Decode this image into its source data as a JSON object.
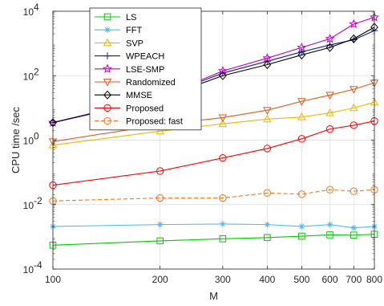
{
  "chart_data": {
    "type": "line",
    "title": "",
    "xlabel": "M",
    "ylabel": "CPU time /sec",
    "x_scale": "log",
    "y_scale": "log",
    "xlim": [
      100,
      800
    ],
    "ylim": [
      0.0001,
      10000
    ],
    "grid": true,
    "legend_position": "top-left",
    "x_ticks": [
      100,
      200,
      300,
      400,
      500,
      600,
      700,
      800
    ],
    "x_tick_labels": [
      "100",
      "200",
      "300",
      "400",
      "500",
      "600",
      "700",
      "800"
    ],
    "y_ticks": [
      0.0001,
      0.01,
      1,
      100,
      10000
    ],
    "y_tick_labels": [
      {
        "base": "10",
        "exp": "-4"
      },
      {
        "base": "10",
        "exp": "-2"
      },
      {
        "base": "10",
        "exp": "0"
      },
      {
        "base": "10",
        "exp": "2"
      },
      {
        "base": "10",
        "exp": "4"
      }
    ],
    "x": [
      100,
      200,
      300,
      400,
      500,
      600,
      700,
      800
    ],
    "series": [
      {
        "name": "LS",
        "color": "#00cc00",
        "marker": "square",
        "dashed": false,
        "values": [
          0.00055,
          0.00075,
          0.00087,
          0.00095,
          0.00105,
          0.00115,
          0.00113,
          0.0012
        ]
      },
      {
        "name": "FFT",
        "color": "#4db8f0",
        "marker": "asterisk",
        "dashed": false,
        "values": [
          0.0021,
          0.0024,
          0.0025,
          0.0024,
          0.0021,
          0.0024,
          0.0019,
          0.0021
        ]
      },
      {
        "name": "SVP",
        "color": "#f0b400",
        "marker": "triangle-up",
        "dashed": false,
        "values": [
          0.7,
          1.9,
          3.2,
          4.5,
          5.2,
          7.0,
          10.0,
          15.0
        ]
      },
      {
        "name": "WPEACH",
        "color": "#1a1a8c",
        "marker": "plus",
        "dashed": false,
        "values": [
          3.5,
          22,
          120,
          280,
          550,
          900,
          1300,
          2500
        ]
      },
      {
        "name": "LSE-SMP",
        "color": "#c000c0",
        "marker": "star",
        "dashed": false,
        "values": [
          3.5,
          22,
          140,
          350,
          750,
          1400,
          4000,
          6500
        ]
      },
      {
        "name": "Randomized",
        "color": "#e05a1a",
        "marker": "triangle-down",
        "dashed": false,
        "values": [
          0.9,
          3.0,
          5.0,
          8.5,
          16,
          25,
          38,
          60
        ]
      },
      {
        "name": "MMSE",
        "color": "#000000",
        "marker": "diamond",
        "dashed": false,
        "values": [
          3.5,
          20,
          100,
          220,
          440,
          750,
          1400,
          3200
        ]
      },
      {
        "name": "Proposed",
        "color": "#ff0000",
        "marker": "circle",
        "dashed": false,
        "values": [
          0.04,
          0.11,
          0.28,
          0.55,
          1.1,
          2.2,
          2.9,
          3.9
        ]
      },
      {
        "name": "Proposed: fast",
        "color": "#f07820",
        "marker": "circle",
        "dashed": true,
        "values": [
          0.013,
          0.016,
          0.016,
          0.023,
          0.021,
          0.029,
          0.026,
          0.029
        ]
      }
    ]
  }
}
